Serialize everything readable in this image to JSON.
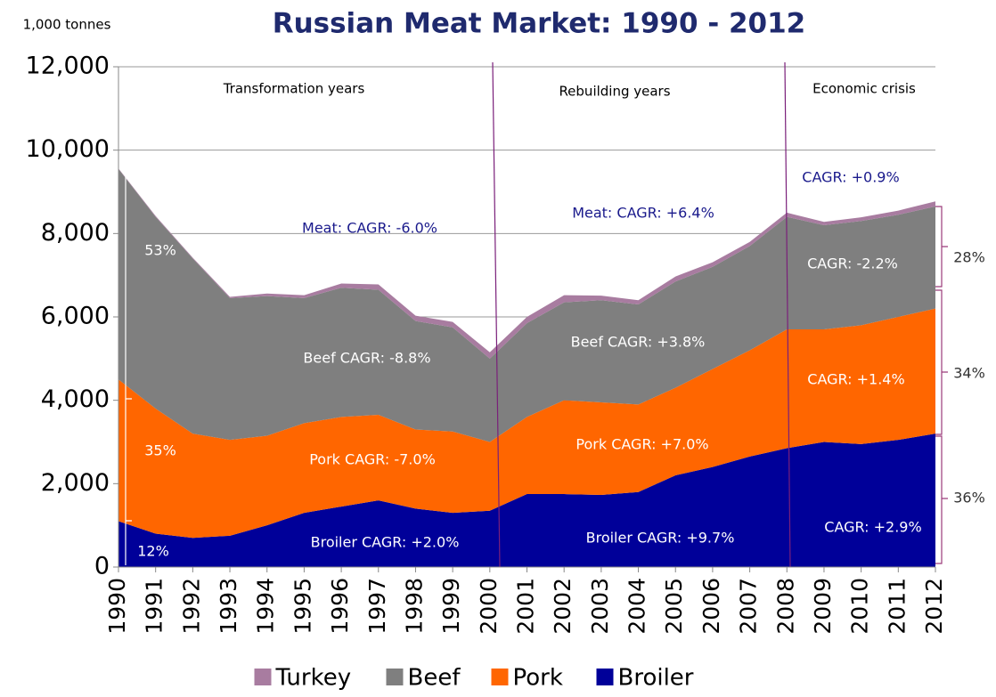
{
  "chart_data": {
    "type": "stacked_area",
    "title": "Russian Meat Market: 1990 - 2012",
    "unit_label": "1,000 tonnes",
    "x": [
      1990,
      1991,
      1992,
      1993,
      1994,
      1995,
      1996,
      1997,
      1998,
      1999,
      2000,
      2001,
      2002,
      2003,
      2004,
      2005,
      2006,
      2007,
      2008,
      2009,
      2010,
      2011,
      2012
    ],
    "xlim": [
      1990,
      2012
    ],
    "ylim": [
      0,
      12000
    ],
    "yticks": [
      0,
      {
        "value": 2000,
        "label": "2,000"
      },
      {
        "value": 4000,
        "label": "4,000"
      },
      {
        "value": 6000,
        "label": "6,000"
      },
      {
        "value": 8000,
        "label": "8,000"
      },
      {
        "value": 10000,
        "label": "10,000"
      },
      {
        "value": 12000,
        "label": "12,000"
      }
    ],
    "grid": true,
    "legend": "bottom",
    "series": [
      {
        "name": "Broiler",
        "color": "#000099",
        "values": [
          1100,
          800,
          700,
          750,
          1000,
          1300,
          1450,
          1600,
          1400,
          1300,
          1350,
          1750,
          1750,
          1730,
          1800,
          2200,
          2400,
          2650,
          2850,
          3000,
          2950,
          3050,
          3200
        ]
      },
      {
        "name": "Pork",
        "color": "#ff6600",
        "values": [
          3400,
          3000,
          2500,
          2300,
          2150,
          2150,
          2150,
          2050,
          1900,
          1950,
          1650,
          1850,
          2250,
          2220,
          2100,
          2100,
          2350,
          2550,
          2850,
          2700,
          2850,
          2950,
          3000
        ]
      },
      {
        "name": "Beef",
        "color": "#7f7f7f",
        "values": [
          5050,
          4600,
          4200,
          3400,
          3350,
          3000,
          3100,
          3000,
          2600,
          2500,
          2000,
          2250,
          2350,
          2450,
          2400,
          2550,
          2450,
          2500,
          2700,
          2500,
          2500,
          2450,
          2450
        ]
      },
      {
        "name": "Turkey",
        "color": "#a87ca0",
        "values": [
          10,
          20,
          20,
          30,
          60,
          70,
          100,
          130,
          130,
          130,
          150,
          150,
          170,
          110,
          100,
          120,
          110,
          100,
          100,
          80,
          90,
          100,
          120
        ]
      }
    ],
    "annotations": [
      "Transformation years",
      "Rebuilding years",
      "Economic crisis",
      "Meat: CAGR: -6.0%",
      "Meat: CAGR: +6.4%",
      "CAGR: +0.9%",
      "Beef CAGR: -8.8%",
      "Pork CAGR: -7.0%",
      "Broiler CAGR: +2.0%",
      "Beef CAGR: +3.8%",
      "Pork CAGR: +7.0%",
      "Broiler CAGR: +9.7%",
      "CAGR: -2.2%",
      "CAGR: +1.4%",
      "CAGR: +2.9%",
      "53%",
      "35%",
      "12%",
      "28%",
      "34%",
      "36%"
    ]
  }
}
